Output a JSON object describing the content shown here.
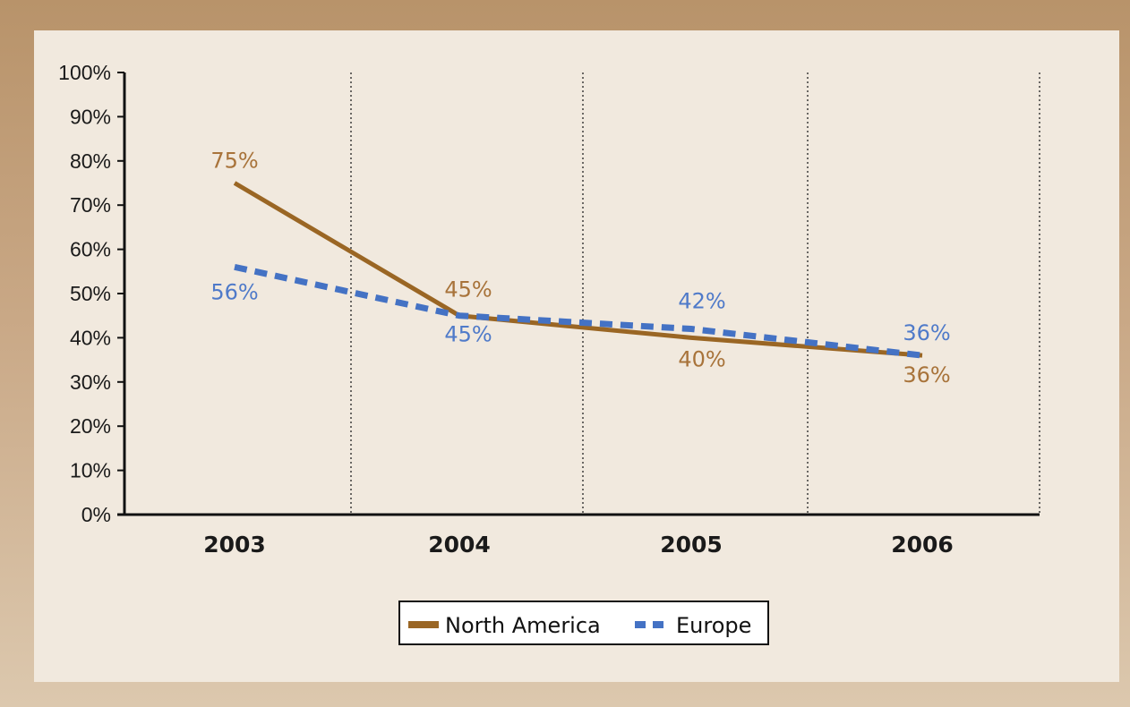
{
  "colors": {
    "north_america": "#9a6624",
    "europe": "#4472c4",
    "label_north_america": "#a8733a",
    "label_europe": "#4f7ac9"
  },
  "chart_data": {
    "type": "line",
    "categories": [
      "2003",
      "2004",
      "2005",
      "2006"
    ],
    "y_ticks": [
      "0%",
      "10%",
      "20%",
      "30%",
      "40%",
      "50%",
      "60%",
      "70%",
      "80%",
      "90%",
      "100%"
    ],
    "ylim": [
      0,
      100
    ],
    "grid": "vertical dotted separators",
    "legend_position": "bottom-center",
    "series": [
      {
        "name": "North America",
        "values": [
          75,
          45,
          40,
          36
        ],
        "labels": [
          "75%",
          "45%",
          "40%",
          "36%"
        ]
      },
      {
        "name": "Europe",
        "values": [
          56,
          45,
          42,
          36
        ],
        "labels": [
          "56%",
          "45%",
          "42%",
          "36%"
        ]
      }
    ]
  }
}
